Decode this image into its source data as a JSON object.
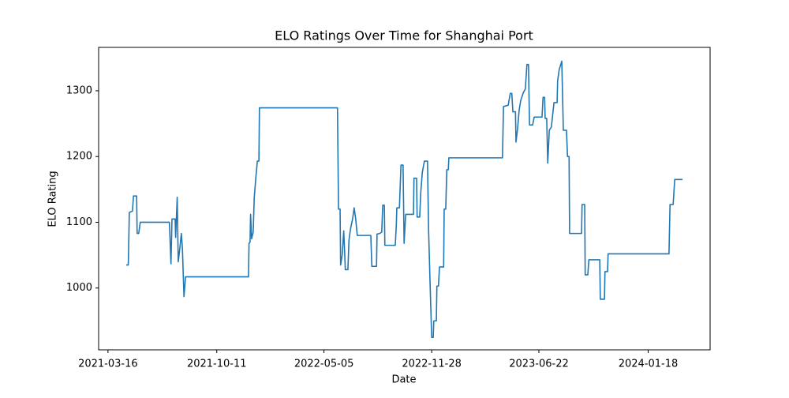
{
  "chart_data": {
    "type": "line",
    "title": "ELO Ratings Over Time for Shanghai Port",
    "xlabel": "Date",
    "ylabel": "ELO Rating",
    "x": [
      "2021-04-20",
      "2021-04-24",
      "2021-04-26",
      "2021-05-02",
      "2021-05-04",
      "2021-05-10",
      "2021-05-11",
      "2021-05-14",
      "2021-05-17",
      "2021-07-12",
      "2021-07-15",
      "2021-07-17",
      "2021-07-23",
      "2021-07-24",
      "2021-07-27",
      "2021-07-29",
      "2021-08-01",
      "2021-08-04",
      "2021-08-06",
      "2021-08-09",
      "2021-08-12",
      "2021-12-11",
      "2021-12-12",
      "2021-12-14",
      "2021-12-15",
      "2021-12-17",
      "2021-12-20",
      "2021-12-22",
      "2021-12-25",
      "2021-12-28",
      "2021-12-31",
      "2022-01-01",
      "2022-05-31",
      "2022-06-02",
      "2022-06-05",
      "2022-06-06",
      "2022-06-09",
      "2022-06-12",
      "2022-06-14",
      "2022-06-15",
      "2022-06-20",
      "2022-06-22",
      "2022-06-25",
      "2022-06-29",
      "2022-07-02",
      "2022-07-05",
      "2022-07-08",
      "2022-08-03",
      "2022-08-05",
      "2022-08-14",
      "2022-08-15",
      "2022-08-20",
      "2022-08-24",
      "2022-08-26",
      "2022-08-29",
      "2022-08-30",
      "2022-09-19",
      "2022-09-21",
      "2022-09-22",
      "2022-09-27",
      "2022-09-30",
      "2022-10-04",
      "2022-10-06",
      "2022-10-09",
      "2022-10-24",
      "2022-10-25",
      "2022-10-30",
      "2022-10-31",
      "2022-11-05",
      "2022-11-07",
      "2022-11-10",
      "2022-11-14",
      "2022-11-20",
      "2022-11-22",
      "2022-11-25",
      "2022-11-28",
      "2022-12-01",
      "2022-12-02",
      "2022-12-07",
      "2022-12-08",
      "2022-12-11",
      "2022-12-13",
      "2022-12-21",
      "2022-12-22",
      "2022-12-25",
      "2022-12-27",
      "2022-12-30",
      "2022-12-31",
      "2023-04-13",
      "2023-04-15",
      "2023-04-24",
      "2023-04-28",
      "2023-05-01",
      "2023-05-03",
      "2023-05-08",
      "2023-05-09",
      "2023-05-12",
      "2023-05-15",
      "2023-05-18",
      "2023-05-23",
      "2023-05-27",
      "2023-05-30",
      "2023-06-02",
      "2023-06-04",
      "2023-06-10",
      "2023-06-13",
      "2023-06-28",
      "2023-06-30",
      "2023-07-03",
      "2023-07-04",
      "2023-07-07",
      "2023-07-09",
      "2023-07-12",
      "2023-07-16",
      "2023-07-21",
      "2023-07-27",
      "2023-07-28",
      "2023-07-31",
      "2023-08-05",
      "2023-08-08",
      "2023-08-14",
      "2023-08-16",
      "2023-08-19",
      "2023-08-20",
      "2023-09-12",
      "2023-09-13",
      "2023-09-18",
      "2023-09-19",
      "2023-09-24",
      "2023-09-26",
      "2023-10-17",
      "2023-10-18",
      "2023-10-26",
      "2023-10-27",
      "2023-11-01",
      "2023-11-02",
      "2024-02-27",
      "2024-02-29",
      "2024-03-06",
      "2024-03-09",
      "2024-03-24"
    ],
    "series": [
      {
        "color": "#1f77b4",
        "values": [
          1035,
          1035,
          1115,
          1117,
          1140,
          1140,
          1083,
          1083,
          1100,
          1100,
          1037,
          1105,
          1105,
          1077,
          1138,
          1040,
          1060,
          1083,
          1060,
          987,
          1017,
          1017,
          1068,
          1070,
          1112,
          1075,
          1085,
          1137,
          1167,
          1193,
          1193,
          1274,
          1274,
          1120,
          1120,
          1035,
          1050,
          1087,
          1050,
          1028,
          1028,
          1072,
          1090,
          1105,
          1122,
          1105,
          1080,
          1080,
          1033,
          1033,
          1082,
          1083,
          1085,
          1126,
          1126,
          1065,
          1065,
          1095,
          1122,
          1122,
          1187,
          1187,
          1068,
          1112,
          1112,
          1167,
          1167,
          1108,
          1108,
          1145,
          1176,
          1193,
          1193,
          1090,
          1005,
          925,
          925,
          950,
          950,
          1003,
          1003,
          1032,
          1032,
          1120,
          1120,
          1180,
          1180,
          1198,
          1198,
          1276,
          1278,
          1296,
          1296,
          1268,
          1268,
          1222,
          1242,
          1270,
          1285,
          1297,
          1303,
          1340,
          1340,
          1248,
          1248,
          1260,
          1260,
          1290,
          1290,
          1258,
          1258,
          1190,
          1240,
          1245,
          1282,
          1282,
          1315,
          1332,
          1345,
          1240,
          1240,
          1200,
          1200,
          1083,
          1083,
          1127,
          1127,
          1020,
          1020,
          1043,
          1043,
          983,
          983,
          1025,
          1025,
          1052,
          1052,
          1127,
          1127,
          1165,
          1165
        ]
      }
    ],
    "xlim": [
      "2021-02-26",
      "2024-05-16"
    ],
    "xticks": [
      "2021-03-16",
      "2021-10-11",
      "2022-05-05",
      "2022-11-28",
      "2023-06-22",
      "2024-01-18"
    ],
    "ylim": [
      906,
      1366
    ],
    "yticks": [
      1000,
      1100,
      1200,
      1300
    ]
  }
}
